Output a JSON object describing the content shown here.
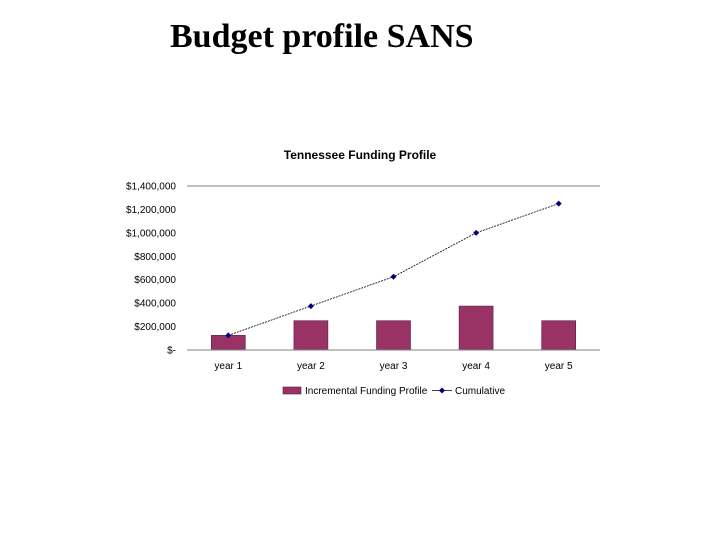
{
  "slide": {
    "title": "Budget profile SANS"
  },
  "colors": {
    "bar": "#993366",
    "line": "#000080",
    "axis": "#808080"
  },
  "chart_data": {
    "type": "bar",
    "title": "Tennessee Funding Profile",
    "xlabel": "",
    "ylabel": "",
    "categories": [
      "year 1",
      "year 2",
      "year 3",
      "year 4",
      "year 5"
    ],
    "ylim": [
      0,
      1400000
    ],
    "yticks": [
      0,
      200000,
      400000,
      600000,
      800000,
      1000000,
      1200000,
      1400000
    ],
    "ytick_labels": [
      "$-",
      "$200,000",
      "$400,000",
      "$600,000",
      "$800,000",
      "$1,000,000",
      "$1,200,000",
      "$1,400,000"
    ],
    "grid": false,
    "legend_position": "bottom",
    "series": [
      {
        "name": "Incremental Funding Profile",
        "type": "bar",
        "values": [
          125000,
          250000,
          250000,
          375000,
          250000
        ]
      },
      {
        "name": "Cumulative",
        "type": "line",
        "values": [
          125000,
          375000,
          625000,
          1000000,
          1250000
        ]
      }
    ]
  }
}
